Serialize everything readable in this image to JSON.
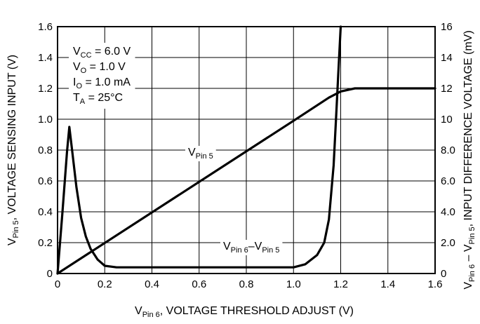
{
  "chart_data": {
    "type": "line",
    "xlabel": {
      "main": "V",
      "sub": "Pin 6",
      "rest": ", VOLTAGE THRESHOLD ADJUST (V)"
    },
    "ylabel_left": {
      "main": "V",
      "sub": "Pin 5",
      "rest": ", VOLTAGE SENSING INPUT (V)"
    },
    "ylabel_right": {
      "v1": "V",
      "sub1": "Pin 6",
      "dash": " – ",
      "v2": "V",
      "sub2": "Pin 5",
      "rest": ", INPUT DIFFERENCE VOLTAGE (mV)"
    },
    "xlim": [
      0,
      1.6
    ],
    "ylim_left": [
      0,
      1.6
    ],
    "ylim_right": [
      0,
      16
    ],
    "x_ticks": [
      "0",
      "0.2",
      "0.4",
      "0.6",
      "0.8",
      "1.0",
      "1.2",
      "1.4",
      "1.6"
    ],
    "y_left_ticks": [
      "0",
      "0.2",
      "0.4",
      "0.6",
      "0.8",
      "1.0",
      "1.2",
      "1.4",
      "1.6"
    ],
    "y_right_ticks": [
      "0",
      "2.0",
      "4.0",
      "6.0",
      "8.0",
      "10",
      "12",
      "14",
      "16"
    ],
    "grid": true,
    "conditions": [
      {
        "main": "V",
        "sub": "CC",
        "rest": " = 6.0 V"
      },
      {
        "main": "V",
        "sub": "O",
        "rest": " = 1.0 V"
      },
      {
        "main": "I",
        "sub": "O",
        "rest": " = 1.0 mA"
      },
      {
        "main": "T",
        "sub": "A",
        "rest": " = 25°C"
      }
    ],
    "series": [
      {
        "name": "VPin 5",
        "axis": "left",
        "label": {
          "main": "V",
          "sub": "Pin 5"
        },
        "x": [
          0,
          1.0,
          1.1,
          1.15,
          1.2,
          1.26,
          1.6
        ],
        "y": [
          0,
          0.99,
          1.09,
          1.14,
          1.18,
          1.2,
          1.2
        ]
      },
      {
        "name": "VPin 6–VPin 5",
        "axis": "right",
        "label": {
          "v1": "V",
          "sub1": "Pin 6",
          "dash": "–",
          "v2": "V",
          "sub2": "Pin 5"
        },
        "x": [
          0,
          0.02,
          0.04,
          0.05,
          0.06,
          0.08,
          0.1,
          0.12,
          0.14,
          0.17,
          0.2,
          0.25,
          0.4,
          0.6,
          0.8,
          1.0,
          1.05,
          1.1,
          1.13,
          1.15,
          1.17,
          1.18,
          1.19,
          1.2
        ],
        "y": [
          0,
          3.8,
          7.9,
          9.5,
          8.2,
          5.6,
          3.6,
          2.4,
          1.6,
          0.9,
          0.5,
          0.4,
          0.4,
          0.4,
          0.4,
          0.4,
          0.6,
          1.2,
          2.0,
          3.5,
          7.0,
          10.0,
          13.0,
          16.0
        ]
      }
    ]
  }
}
